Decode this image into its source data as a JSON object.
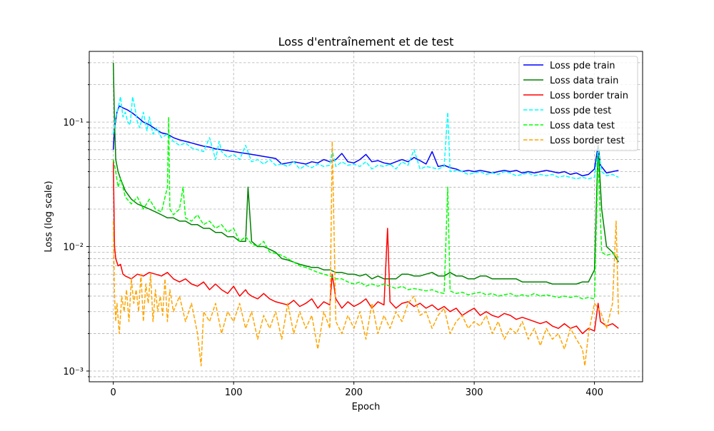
{
  "chart_data": {
    "type": "line",
    "title": "Loss d'entraînement et de test",
    "xlabel": "Epoch",
    "ylabel": "Loss (log scale)",
    "x_range": [
      -20,
      440
    ],
    "y_range": [
      0.00082,
      0.37
    ],
    "y_scale": "log",
    "x_ticks": [
      {
        "value": 0,
        "label": "0"
      },
      {
        "value": 100,
        "label": "100"
      },
      {
        "value": 200,
        "label": "200"
      },
      {
        "value": 300,
        "label": "300"
      },
      {
        "value": 400,
        "label": "400"
      }
    ],
    "y_ticks": [
      {
        "value": 0.001,
        "label": "10⁻³"
      },
      {
        "value": 0.01,
        "label": "10⁻²"
      },
      {
        "value": 0.1,
        "label": "10⁻¹"
      }
    ],
    "grid": true,
    "legend_position": "top-right",
    "series": [
      {
        "name": "Loss pde train",
        "color": "#0000ff",
        "dash": "solid",
        "x": [
          0,
          1,
          3,
          5,
          8,
          12,
          16,
          20,
          25,
          30,
          35,
          40,
          45,
          50,
          55,
          60,
          65,
          70,
          75,
          80,
          85,
          90,
          95,
          100,
          105,
          110,
          115,
          120,
          125,
          130,
          135,
          140,
          145,
          150,
          155,
          160,
          165,
          170,
          175,
          180,
          185,
          190,
          195,
          200,
          205,
          210,
          215,
          220,
          225,
          230,
          235,
          240,
          245,
          250,
          255,
          260,
          265,
          270,
          275,
          280,
          285,
          290,
          295,
          300,
          305,
          310,
          315,
          320,
          325,
          330,
          335,
          340,
          345,
          350,
          355,
          360,
          365,
          370,
          375,
          380,
          385,
          390,
          395,
          400,
          403,
          405,
          410,
          415,
          420
        ],
        "y": [
          0.06,
          0.09,
          0.12,
          0.135,
          0.13,
          0.125,
          0.118,
          0.11,
          0.1,
          0.095,
          0.088,
          0.082,
          0.08,
          0.075,
          0.072,
          0.07,
          0.068,
          0.066,
          0.064,
          0.063,
          0.061,
          0.06,
          0.059,
          0.058,
          0.057,
          0.056,
          0.055,
          0.054,
          0.053,
          0.052,
          0.051,
          0.046,
          0.047,
          0.048,
          0.047,
          0.046,
          0.048,
          0.047,
          0.05,
          0.048,
          0.05,
          0.056,
          0.048,
          0.047,
          0.05,
          0.055,
          0.048,
          0.049,
          0.047,
          0.046,
          0.048,
          0.05,
          0.048,
          0.052,
          0.049,
          0.046,
          0.058,
          0.044,
          0.045,
          0.043,
          0.042,
          0.04,
          0.041,
          0.04,
          0.041,
          0.04,
          0.039,
          0.04,
          0.041,
          0.04,
          0.041,
          0.039,
          0.04,
          0.039,
          0.04,
          0.041,
          0.04,
          0.039,
          0.04,
          0.038,
          0.039,
          0.037,
          0.038,
          0.042,
          0.065,
          0.045,
          0.039,
          0.04,
          0.041
        ]
      },
      {
        "name": "Loss data train",
        "color": "#008000",
        "dash": "solid",
        "x": [
          0,
          1,
          2,
          4,
          6,
          10,
          15,
          20,
          25,
          30,
          35,
          40,
          45,
          50,
          55,
          60,
          65,
          70,
          75,
          80,
          85,
          90,
          95,
          100,
          105,
          110,
          112,
          115,
          120,
          125,
          130,
          135,
          140,
          145,
          150,
          155,
          160,
          165,
          170,
          175,
          180,
          185,
          190,
          195,
          200,
          205,
          210,
          215,
          220,
          225,
          230,
          235,
          240,
          245,
          250,
          255,
          260,
          265,
          270,
          275,
          280,
          285,
          290,
          295,
          300,
          305,
          310,
          315,
          320,
          325,
          330,
          335,
          340,
          345,
          350,
          355,
          360,
          365,
          370,
          375,
          380,
          385,
          390,
          395,
          400,
          403,
          406,
          410,
          415,
          420
        ],
        "y": [
          0.3,
          0.1,
          0.05,
          0.04,
          0.035,
          0.028,
          0.024,
          0.022,
          0.021,
          0.02,
          0.019,
          0.018,
          0.017,
          0.017,
          0.016,
          0.016,
          0.015,
          0.015,
          0.014,
          0.014,
          0.013,
          0.013,
          0.012,
          0.012,
          0.011,
          0.011,
          0.03,
          0.011,
          0.01,
          0.01,
          0.0095,
          0.009,
          0.008,
          0.0078,
          0.0075,
          0.0072,
          0.007,
          0.0068,
          0.0068,
          0.0065,
          0.0065,
          0.0062,
          0.0062,
          0.006,
          0.006,
          0.0058,
          0.006,
          0.0055,
          0.0058,
          0.0055,
          0.0055,
          0.0055,
          0.006,
          0.006,
          0.0058,
          0.0058,
          0.006,
          0.0062,
          0.0058,
          0.0058,
          0.0062,
          0.0058,
          0.0058,
          0.0055,
          0.0055,
          0.0058,
          0.0058,
          0.0055,
          0.0055,
          0.0055,
          0.0055,
          0.0055,
          0.0052,
          0.0052,
          0.0052,
          0.0052,
          0.0052,
          0.005,
          0.005,
          0.005,
          0.005,
          0.005,
          0.0052,
          0.0052,
          0.0065,
          0.065,
          0.02,
          0.01,
          0.009,
          0.0075
        ]
      },
      {
        "name": "Loss border train",
        "color": "#ff0000",
        "dash": "solid",
        "x": [
          0,
          1,
          2,
          4,
          6,
          8,
          10,
          15,
          20,
          25,
          30,
          35,
          40,
          45,
          50,
          55,
          60,
          65,
          70,
          75,
          80,
          85,
          90,
          95,
          100,
          105,
          110,
          112,
          115,
          120,
          125,
          130,
          135,
          140,
          145,
          150,
          155,
          160,
          165,
          170,
          175,
          180,
          182,
          185,
          190,
          195,
          200,
          205,
          210,
          215,
          220,
          225,
          228,
          230,
          235,
          240,
          245,
          250,
          255,
          260,
          265,
          270,
          275,
          280,
          285,
          290,
          295,
          300,
          305,
          310,
          315,
          320,
          325,
          330,
          335,
          340,
          345,
          350,
          355,
          360,
          365,
          370,
          375,
          380,
          385,
          390,
          395,
          400,
          403,
          405,
          410,
          415,
          420
        ],
        "y": [
          0.05,
          0.01,
          0.008,
          0.007,
          0.0072,
          0.006,
          0.0058,
          0.0055,
          0.006,
          0.0058,
          0.0062,
          0.006,
          0.0058,
          0.0062,
          0.0055,
          0.0052,
          0.0055,
          0.005,
          0.0048,
          0.0052,
          0.0045,
          0.005,
          0.0045,
          0.0042,
          0.0048,
          0.004,
          0.0045,
          0.0042,
          0.004,
          0.0038,
          0.0042,
          0.0038,
          0.0036,
          0.0035,
          0.0034,
          0.0037,
          0.0033,
          0.0035,
          0.0038,
          0.0032,
          0.0036,
          0.0034,
          0.006,
          0.0038,
          0.0032,
          0.0036,
          0.0033,
          0.0035,
          0.0038,
          0.0032,
          0.0036,
          0.0034,
          0.014,
          0.0036,
          0.0032,
          0.0035,
          0.0036,
          0.0033,
          0.0035,
          0.0032,
          0.0034,
          0.0031,
          0.0033,
          0.003,
          0.0032,
          0.0028,
          0.003,
          0.0032,
          0.0028,
          0.003,
          0.0028,
          0.0027,
          0.0029,
          0.0028,
          0.0026,
          0.0027,
          0.0026,
          0.0025,
          0.0024,
          0.0025,
          0.0023,
          0.0022,
          0.0024,
          0.0022,
          0.0023,
          0.002,
          0.0022,
          0.0021,
          0.0035,
          0.0025,
          0.0023,
          0.0024,
          0.0022
        ]
      },
      {
        "name": "Loss pde test",
        "color": "#00ffff",
        "dash": "dashed",
        "x": [
          0,
          2,
          4,
          6,
          8,
          10,
          12,
          14,
          16,
          18,
          20,
          22,
          25,
          28,
          30,
          33,
          36,
          40,
          45,
          50,
          55,
          60,
          65,
          70,
          75,
          80,
          85,
          88,
          90,
          95,
          100,
          105,
          110,
          115,
          120,
          125,
          130,
          135,
          140,
          145,
          150,
          155,
          160,
          165,
          170,
          175,
          180,
          182,
          185,
          190,
          195,
          200,
          205,
          210,
          215,
          220,
          225,
          230,
          235,
          240,
          245,
          250,
          255,
          260,
          265,
          270,
          275,
          278,
          280,
          285,
          290,
          295,
          300,
          305,
          310,
          315,
          320,
          325,
          330,
          335,
          340,
          345,
          350,
          355,
          360,
          365,
          370,
          375,
          380,
          385,
          390,
          395,
          400,
          403,
          406,
          410,
          415,
          420
        ],
        "y": [
          0.08,
          0.11,
          0.13,
          0.16,
          0.11,
          0.12,
          0.1,
          0.095,
          0.16,
          0.13,
          0.1,
          0.09,
          0.12,
          0.085,
          0.11,
          0.08,
          0.09,
          0.075,
          0.08,
          0.07,
          0.065,
          0.068,
          0.062,
          0.06,
          0.058,
          0.075,
          0.05,
          0.07,
          0.058,
          0.052,
          0.055,
          0.05,
          0.065,
          0.048,
          0.05,
          0.046,
          0.05,
          0.045,
          0.046,
          0.044,
          0.048,
          0.042,
          0.045,
          0.043,
          0.046,
          0.044,
          0.045,
          0.06,
          0.044,
          0.048,
          0.045,
          0.046,
          0.044,
          0.048,
          0.042,
          0.045,
          0.044,
          0.046,
          0.042,
          0.048,
          0.045,
          0.06,
          0.042,
          0.044,
          0.043,
          0.042,
          0.044,
          0.12,
          0.04,
          0.041,
          0.04,
          0.038,
          0.039,
          0.04,
          0.038,
          0.039,
          0.038,
          0.04,
          0.039,
          0.037,
          0.038,
          0.039,
          0.037,
          0.038,
          0.037,
          0.038,
          0.036,
          0.037,
          0.036,
          0.035,
          0.036,
          0.035,
          0.036,
          0.06,
          0.04,
          0.037,
          0.038,
          0.036
        ]
      },
      {
        "name": "Loss data test",
        "color": "#00ff00",
        "dash": "dashed",
        "x": [
          0,
          2,
          4,
          6,
          8,
          10,
          15,
          20,
          25,
          30,
          35,
          40,
          45,
          46,
          47,
          50,
          55,
          58,
          60,
          65,
          70,
          75,
          80,
          85,
          90,
          95,
          100,
          105,
          110,
          115,
          120,
          125,
          130,
          135,
          140,
          145,
          150,
          155,
          160,
          165,
          170,
          175,
          180,
          185,
          190,
          195,
          200,
          205,
          210,
          215,
          220,
          225,
          230,
          235,
          240,
          245,
          250,
          255,
          260,
          265,
          270,
          275,
          278,
          280,
          285,
          290,
          295,
          300,
          305,
          310,
          315,
          320,
          325,
          330,
          335,
          340,
          345,
          350,
          355,
          360,
          365,
          370,
          375,
          380,
          385,
          390,
          395,
          400,
          403,
          406,
          410,
          415,
          420
        ],
        "y": [
          0.05,
          0.04,
          0.03,
          0.035,
          0.03,
          0.025,
          0.022,
          0.025,
          0.02,
          0.024,
          0.02,
          0.019,
          0.03,
          0.11,
          0.02,
          0.018,
          0.02,
          0.03,
          0.017,
          0.016,
          0.018,
          0.015,
          0.016,
          0.014,
          0.015,
          0.013,
          0.014,
          0.011,
          0.012,
          0.0105,
          0.01,
          0.011,
          0.009,
          0.0088,
          0.0085,
          0.008,
          0.0075,
          0.007,
          0.0068,
          0.0065,
          0.0062,
          0.006,
          0.0058,
          0.0055,
          0.0055,
          0.0052,
          0.005,
          0.0052,
          0.0048,
          0.005,
          0.0048,
          0.005,
          0.0048,
          0.0046,
          0.0048,
          0.0045,
          0.0046,
          0.0045,
          0.0044,
          0.0045,
          0.0043,
          0.0042,
          0.03,
          0.0044,
          0.0042,
          0.0043,
          0.0041,
          0.0042,
          0.0043,
          0.0041,
          0.0042,
          0.004,
          0.0041,
          0.0042,
          0.004,
          0.0041,
          0.004,
          0.0042,
          0.004,
          0.0041,
          0.004,
          0.0039,
          0.004,
          0.0039,
          0.004,
          0.0038,
          0.0039,
          0.0038,
          0.05,
          0.009,
          0.0085,
          0.0088,
          0.0082
        ]
      },
      {
        "name": "Loss border test",
        "color": "#ffa500",
        "dash": "dashed",
        "x": [
          0,
          1,
          2,
          3,
          5,
          7,
          9,
          11,
          13,
          15,
          17,
          19,
          21,
          23,
          25,
          27,
          29,
          31,
          33,
          35,
          37,
          39,
          41,
          43,
          45,
          47,
          50,
          55,
          60,
          65,
          70,
          73,
          75,
          80,
          85,
          90,
          95,
          100,
          105,
          110,
          115,
          120,
          125,
          130,
          135,
          140,
          145,
          150,
          155,
          160,
          165,
          170,
          175,
          180,
          182,
          185,
          190,
          195,
          200,
          205,
          210,
          215,
          220,
          225,
          230,
          235,
          240,
          245,
          250,
          255,
          260,
          265,
          270,
          275,
          280,
          285,
          290,
          295,
          300,
          305,
          310,
          315,
          320,
          325,
          330,
          335,
          340,
          345,
          350,
          355,
          360,
          365,
          370,
          375,
          380,
          385,
          390,
          392,
          395,
          400,
          405,
          410,
          415,
          418,
          420
        ],
        "y": [
          0.016,
          0.004,
          0.0025,
          0.0035,
          0.002,
          0.004,
          0.003,
          0.0045,
          0.0025,
          0.0055,
          0.0035,
          0.0045,
          0.003,
          0.006,
          0.0025,
          0.005,
          0.0035,
          0.006,
          0.0025,
          0.0045,
          0.003,
          0.004,
          0.0028,
          0.0055,
          0.0025,
          0.0045,
          0.003,
          0.004,
          0.0025,
          0.0035,
          0.002,
          0.0011,
          0.003,
          0.0025,
          0.0035,
          0.002,
          0.003,
          0.0025,
          0.0035,
          0.0022,
          0.003,
          0.0018,
          0.0028,
          0.0022,
          0.003,
          0.0018,
          0.0035,
          0.002,
          0.003,
          0.0022,
          0.0028,
          0.0015,
          0.003,
          0.0022,
          0.07,
          0.0025,
          0.002,
          0.0028,
          0.0022,
          0.003,
          0.0018,
          0.0035,
          0.002,
          0.0028,
          0.0022,
          0.003,
          0.0025,
          0.0035,
          0.004,
          0.0028,
          0.003,
          0.0022,
          0.0028,
          0.0032,
          0.002,
          0.0025,
          0.0028,
          0.0022,
          0.0025,
          0.0023,
          0.0028,
          0.002,
          0.0025,
          0.0018,
          0.0022,
          0.002,
          0.0025,
          0.0018,
          0.0022,
          0.0016,
          0.0022,
          0.0018,
          0.002,
          0.0015,
          0.0022,
          0.0018,
          0.0015,
          0.0011,
          0.002,
          0.0035,
          0.003,
          0.0022,
          0.0035,
          0.016,
          0.0028
        ]
      }
    ]
  }
}
